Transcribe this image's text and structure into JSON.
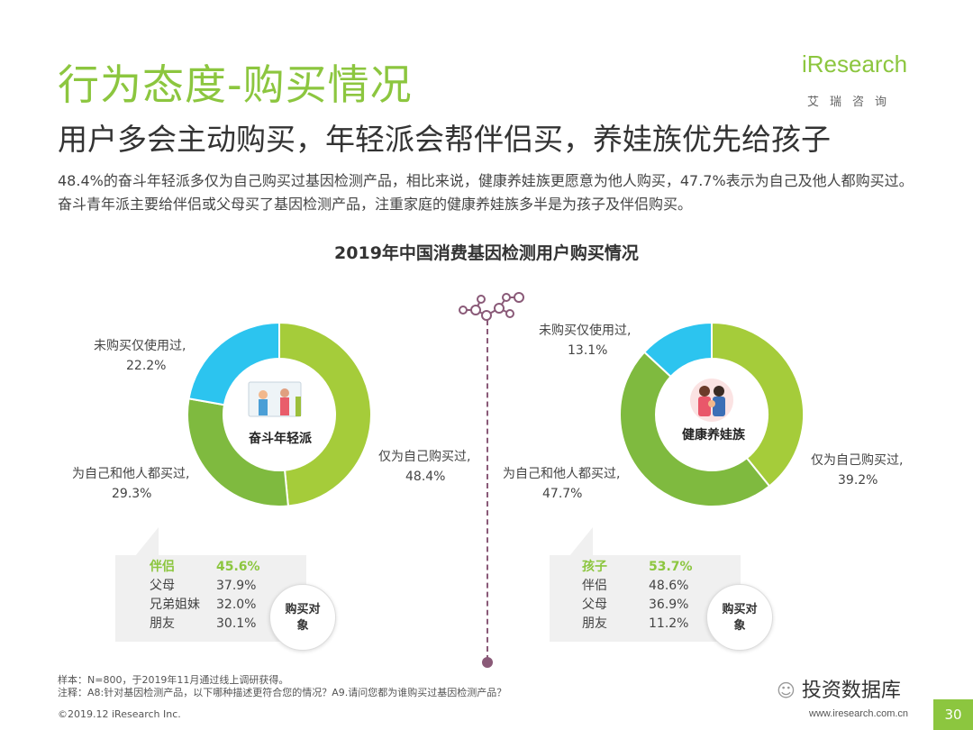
{
  "header": {
    "title": "行为态度-购买情况",
    "subtitle": "用户多会主动购买，年轻派会帮伴侣买，养娃族优先给孩子",
    "body": "48.4%的奋斗年轻派多仅为自己购买过基因检测产品，相比来说，健康养娃族更愿意为他人购买，47.7%表示为自己及他人都购买过。奋斗青年派主要给伴侣或父母买了基因检测产品，注重家庭的健康养娃族多半是为孩子及伴侣购买。"
  },
  "logo": {
    "main": "iResearch",
    "sub": "艾瑞咨询"
  },
  "chart_data": {
    "title": "2019年中国消费基因检测用户购买情况",
    "charts": [
      {
        "type": "pie",
        "center_label": "奋斗年轻派",
        "slices": [
          {
            "label": "仅为自己购买过,",
            "value": 48.4,
            "text": "48.4%",
            "color": "#a5cc3a"
          },
          {
            "label": "为自己和他人都买过,",
            "value": 29.3,
            "text": "29.3%",
            "color": "#7fba3f"
          },
          {
            "label": "未购买仅使用过,",
            "value": 22.2,
            "text": "22.2%",
            "color": "#2cc4ef"
          }
        ],
        "purchase_targets": [
          {
            "name": "伴侣",
            "value": "45.6%",
            "highlight": true
          },
          {
            "name": "父母",
            "value": "37.9%",
            "highlight": false
          },
          {
            "name": "兄弟姐妹",
            "value": "32.0%",
            "highlight": false
          },
          {
            "name": "朋友",
            "value": "30.1%",
            "highlight": false
          }
        ]
      },
      {
        "type": "pie",
        "center_label": "健康养娃族",
        "slices": [
          {
            "label": "仅为自己购买过,",
            "value": 39.2,
            "text": "39.2%",
            "color": "#a5cc3a"
          },
          {
            "label": "为自己和他人都买过,",
            "value": 47.7,
            "text": "47.7%",
            "color": "#7fba3f"
          },
          {
            "label": "未购买仅使用过,",
            "value": 13.1,
            "text": "13.1%",
            "color": "#2cc4ef"
          }
        ],
        "purchase_targets": [
          {
            "name": "孩子",
            "value": "53.7%",
            "highlight": true
          },
          {
            "name": "伴侣",
            "value": "48.6%",
            "highlight": false
          },
          {
            "name": "父母",
            "value": "36.9%",
            "highlight": false
          },
          {
            "name": "朋友",
            "value": "11.2%",
            "highlight": false
          }
        ]
      }
    ]
  },
  "purchase_label": "购买对象",
  "notes": {
    "sample": "样本：N=800，于2019年11月通过线上调研获得。",
    "note": "注释：A8:针对基因检测产品，以下哪种描述更符合您的情况？A9.请问您都为谁购买过基因检测产品？"
  },
  "footer": {
    "copyright": "©2019.12 iResearch Inc.",
    "url": "www.iresearch.com.cn",
    "wechat": "投资数据库",
    "page": "30"
  }
}
